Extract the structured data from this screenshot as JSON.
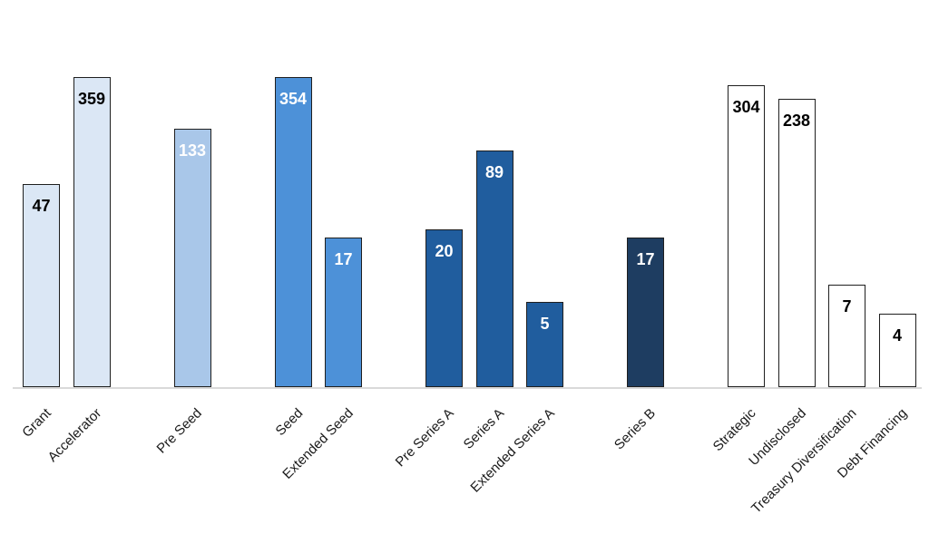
{
  "chart_data": {
    "type": "bar",
    "title": "",
    "categories": [
      "Grant",
      "Accelerator",
      "Pre Seed",
      "Seed",
      "Extended Seed",
      "Pre Series A",
      "Series A",
      "Extended Series A",
      "Series B",
      "Strategic",
      "Undisclosed",
      "Treasury Diversification",
      "Debt Financing"
    ],
    "values": [
      47,
      359,
      133,
      354,
      17,
      20,
      89,
      5,
      17,
      304,
      238,
      7,
      4
    ],
    "groups": [
      {
        "name": "grant-accelerator",
        "fill": "#dbe7f5",
        "value_label_color": "#000000",
        "bars": [
          {
            "label": "Grant",
            "value": 47
          },
          {
            "label": "Accelerator",
            "value": 359
          }
        ]
      },
      {
        "name": "pre-seed",
        "fill": "#a9c7e9",
        "value_label_color": "#ffffff",
        "bars": [
          {
            "label": "Pre Seed",
            "value": 133
          }
        ]
      },
      {
        "name": "seed",
        "fill": "#4d91d8",
        "value_label_color": "#ffffff",
        "bars": [
          {
            "label": "Seed",
            "value": 354
          },
          {
            "label": "Extended Seed",
            "value": 17
          }
        ]
      },
      {
        "name": "series-a",
        "fill": "#205d9e",
        "value_label_color": "#ffffff",
        "bars": [
          {
            "label": "Pre Series A",
            "value": 20
          },
          {
            "label": "Series A",
            "value": 89
          },
          {
            "label": "Extended Series A",
            "value": 5
          }
        ]
      },
      {
        "name": "series-b",
        "fill": "#1e3d61",
        "value_label_color": "#ffffff",
        "bars": [
          {
            "label": "Series B",
            "value": 17
          }
        ]
      },
      {
        "name": "other",
        "fill": "#ffffff",
        "value_label_color": "#000000",
        "bars": [
          {
            "label": "Strategic",
            "value": 304
          },
          {
            "label": "Undisclosed",
            "value": 238
          },
          {
            "label": "Treasury Diversification",
            "value": 7
          },
          {
            "label": "Debt Financing",
            "value": 4
          }
        ]
      }
    ],
    "yscale": "log",
    "gridlines": false,
    "legend": false,
    "x_tick_label_rotation_deg": 45,
    "value_labels_position": "inside-top",
    "bar_border_color": "#1f1f1f",
    "axis_line_color": "#d9d9d9",
    "background": "#ffffff"
  }
}
